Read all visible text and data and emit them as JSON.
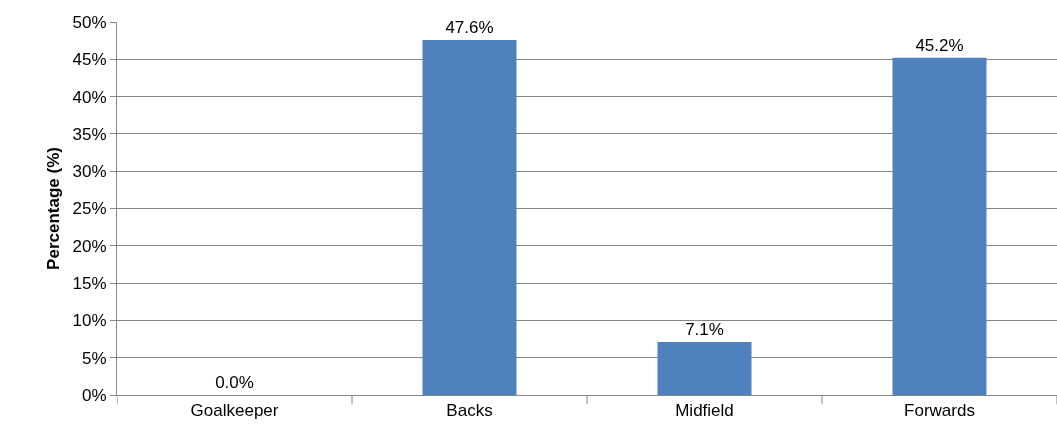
{
  "chart_data": {
    "type": "bar",
    "ylabel": "Percentage (%)",
    "categories": [
      "Goalkeeper",
      "Backs",
      "Midfield",
      "Forwards"
    ],
    "values": [
      0,
      47.6,
      7.1,
      45.2
    ],
    "color": "#4f81bd",
    "value_labels": [
      "0.0%",
      "47.6%",
      "7.1%",
      "45.2%"
    ],
    "ylim": [
      0,
      50
    ],
    "yticks": [
      {
        "value": 0,
        "label": "0%"
      },
      {
        "value": 5,
        "label": "5%"
      },
      {
        "value": 10,
        "label": "10%"
      },
      {
        "value": 15,
        "label": "15%"
      },
      {
        "value": 20,
        "label": "20%"
      },
      {
        "value": 25,
        "label": "25%"
      },
      {
        "value": 30,
        "label": "30%"
      },
      {
        "value": 35,
        "label": "35%"
      },
      {
        "value": 40,
        "label": "40%"
      },
      {
        "value": 45,
        "label": "45%"
      },
      {
        "value": 50,
        "label": "50%"
      }
    ],
    "grid": "y"
  }
}
